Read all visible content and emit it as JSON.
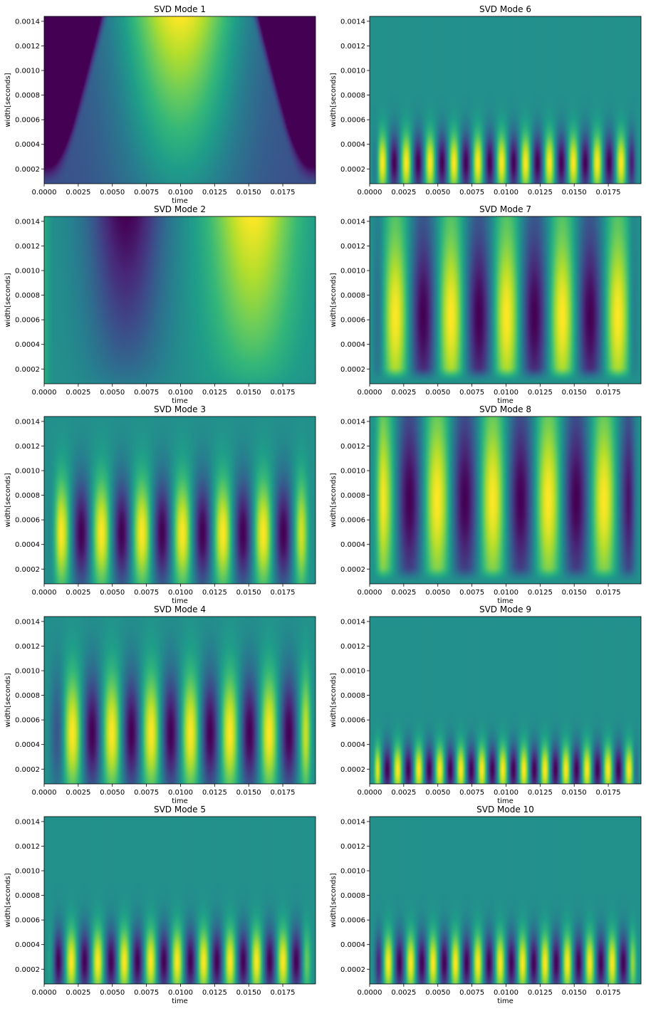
{
  "chart_data": [
    {
      "type": "heatmap",
      "title": "SVD Mode 1",
      "xlabel": "time",
      "ylabel": "width[seconds]",
      "xlim": [
        0,
        0.0199
      ],
      "ylim": [
        8e-05,
        0.00144
      ],
      "colormap": "viridis",
      "xticks": [
        "0.0000",
        "0.0025",
        "0.0050",
        "0.0075",
        "0.0100",
        "0.0125",
        "0.0150",
        "0.0175"
      ],
      "yticks": [
        "0.0002",
        "0.0004",
        "0.0006",
        "0.0008",
        "0.0010",
        "0.0012",
        "0.0014"
      ]
    },
    {
      "type": "heatmap",
      "title": "SVD Mode 2",
      "xlabel": "time",
      "ylabel": "width[seconds]",
      "xlim": [
        0,
        0.0199
      ],
      "ylim": [
        8e-05,
        0.00144
      ],
      "colormap": "viridis",
      "xticks": [
        "0.0000",
        "0.0025",
        "0.0050",
        "0.0075",
        "0.0100",
        "0.0125",
        "0.0150",
        "0.0175"
      ],
      "yticks": [
        "0.0002",
        "0.0004",
        "0.0006",
        "0.0008",
        "0.0010",
        "0.0012",
        "0.0014"
      ]
    },
    {
      "type": "heatmap",
      "title": "SVD Mode 3",
      "xlabel": "time",
      "ylabel": "width[seconds]",
      "xlim": [
        0,
        0.0199
      ],
      "ylim": [
        8e-05,
        0.00144
      ],
      "colormap": "viridis",
      "xticks": [
        "0.0000",
        "0.0025",
        "0.0050",
        "0.0075",
        "0.0100",
        "0.0125",
        "0.0150",
        "0.0175"
      ],
      "yticks": [
        "0.0002",
        "0.0004",
        "0.0006",
        "0.0008",
        "0.0010",
        "0.0012",
        "0.0014"
      ]
    },
    {
      "type": "heatmap",
      "title": "SVD Mode 4",
      "xlabel": "time",
      "ylabel": "width[seconds]",
      "xlim": [
        0,
        0.0199
      ],
      "ylim": [
        8e-05,
        0.00144
      ],
      "colormap": "viridis",
      "xticks": [
        "0.0000",
        "0.0025",
        "0.0050",
        "0.0075",
        "0.0100",
        "0.0125",
        "0.0150",
        "0.0175"
      ],
      "yticks": [
        "0.0002",
        "0.0004",
        "0.0006",
        "0.0008",
        "0.0010",
        "0.0012",
        "0.0014"
      ]
    },
    {
      "type": "heatmap",
      "title": "SVD Mode 5",
      "xlabel": "time",
      "ylabel": "width[seconds]",
      "xlim": [
        0,
        0.0199
      ],
      "ylim": [
        8e-05,
        0.00144
      ],
      "colormap": "viridis",
      "xticks": [
        "0.0000",
        "0.0025",
        "0.0050",
        "0.0075",
        "0.0100",
        "0.0125",
        "0.0150",
        "0.0175"
      ],
      "yticks": [
        "0.0002",
        "0.0004",
        "0.0006",
        "0.0008",
        "0.0010",
        "0.0012",
        "0.0014"
      ]
    },
    {
      "type": "heatmap",
      "title": "SVD Mode 6",
      "xlabel": "",
      "ylabel": "width[seconds]",
      "xlim": [
        0,
        0.0199
      ],
      "ylim": [
        8e-05,
        0.00144
      ],
      "colormap": "viridis",
      "xticks": [
        "0.0000",
        "0.0025",
        "0.0050",
        "0.0075",
        "0.0100",
        "0.0125",
        "0.0150",
        "0.0175"
      ],
      "yticks": [
        "0.0002",
        "0.0004",
        "0.0006",
        "0.0008",
        "0.0010",
        "0.0012",
        "0.0014"
      ]
    },
    {
      "type": "heatmap",
      "title": "SVD Mode 7",
      "xlabel": "time",
      "ylabel": "width[seconds]",
      "xlim": [
        0,
        0.0199
      ],
      "ylim": [
        8e-05,
        0.00144
      ],
      "colormap": "viridis",
      "xticks": [
        "0.0000",
        "0.0025",
        "0.0050",
        "0.0075",
        "0.0100",
        "0.0125",
        "0.0150",
        "0.0175"
      ],
      "yticks": [
        "0.0002",
        "0.0004",
        "0.0006",
        "0.0008",
        "0.0010",
        "0.0012",
        "0.0014"
      ]
    },
    {
      "type": "heatmap",
      "title": "SVD Mode 8",
      "xlabel": "time",
      "ylabel": "width[seconds]",
      "xlim": [
        0,
        0.0199
      ],
      "ylim": [
        8e-05,
        0.00144
      ],
      "colormap": "viridis",
      "xticks": [
        "0.0000",
        "0.0025",
        "0.0050",
        "0.0075",
        "0.0100",
        "0.0125",
        "0.0150",
        "0.0175"
      ],
      "yticks": [
        "0.0002",
        "0.0004",
        "0.0006",
        "0.0008",
        "0.0010",
        "0.0012",
        "0.0014"
      ]
    },
    {
      "type": "heatmap",
      "title": "SVD Mode 9",
      "xlabel": "time",
      "ylabel": "width[seconds]",
      "xlim": [
        0,
        0.0199
      ],
      "ylim": [
        8e-05,
        0.00144
      ],
      "colormap": "viridis",
      "xticks": [
        "0.0000",
        "0.0025",
        "0.0050",
        "0.0075",
        "0.0100",
        "0.0125",
        "0.0150",
        "0.0175"
      ],
      "yticks": [
        "0.0002",
        "0.0004",
        "0.0006",
        "0.0008",
        "0.0010",
        "0.0012",
        "0.0014"
      ]
    },
    {
      "type": "heatmap",
      "title": "SVD Mode 10",
      "xlabel": "time",
      "ylabel": "width[seconds]",
      "xlim": [
        0,
        0.0199
      ],
      "ylim": [
        8e-05,
        0.00144
      ],
      "colormap": "viridis",
      "xticks": [
        "0.0000",
        "0.0025",
        "0.0050",
        "0.0075",
        "0.0100",
        "0.0125",
        "0.0150",
        "0.0175"
      ],
      "yticks": [
        "0.0002",
        "0.0004",
        "0.0006",
        "0.0008",
        "0.0010",
        "0.0012",
        "0.0014"
      ]
    }
  ]
}
